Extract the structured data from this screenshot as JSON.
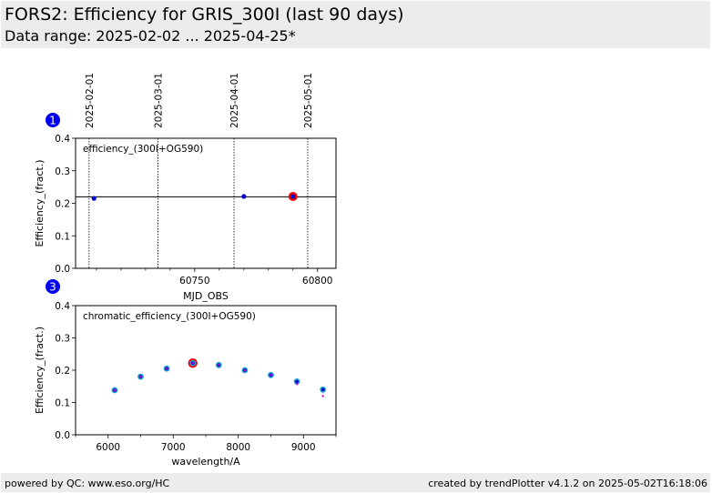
{
  "header": {
    "title": "FORS2: Efficiency for GRIS_300I (last 90 days)",
    "subtitle": "Data range: 2025-02-02 ... 2025-04-25*"
  },
  "footer": {
    "left": "powered by QC: www.eso.org/HC",
    "right": "created by trendPlotter v4.1.2 on 2025-05-02T16:18:06"
  },
  "colors": {
    "marker": "#0000cc",
    "highlight": "#ff0000",
    "cyan": "#1f9fcf",
    "magenta": "#cc00cc"
  },
  "chart_data": [
    {
      "type": "scatter",
      "panel_badge": "1",
      "annotation": "efficiency_(300I+OG590)",
      "xlabel": "MJD_OBS",
      "ylabel": "Efficiency_(fract.)",
      "xlim": [
        60701.5,
        60807.5
      ],
      "ylim": [
        0.0,
        0.4
      ],
      "x_ticks": [
        60750,
        60800
      ],
      "x_minor_ticks": [
        60710,
        60720,
        60730,
        60740,
        60760,
        60770,
        60780,
        60790
      ],
      "y_ticks": [
        0.0,
        0.1,
        0.2,
        0.3,
        0.4
      ],
      "date_markers": [
        {
          "label": "2025-02-01",
          "x": 60707
        },
        {
          "label": "2025-03-01",
          "x": 60735
        },
        {
          "label": "2025-04-01",
          "x": 60766
        },
        {
          "label": "2025-05-01",
          "x": 60796
        }
      ],
      "reference_line": 0.22,
      "points": [
        {
          "x": 60709,
          "y": 0.215
        },
        {
          "x": 60770,
          "y": 0.221
        },
        {
          "x": 60790,
          "y": 0.221,
          "highlight": true
        }
      ]
    },
    {
      "type": "scatter",
      "panel_badge": "3",
      "annotation": "chromatic_efficiency_(300I+OG590)",
      "xlabel": "wavelength/A",
      "ylabel": "Efficiency_(fract.)",
      "xlim": [
        5500,
        9500
      ],
      "ylim": [
        0.0,
        0.4
      ],
      "x_ticks": [
        6000,
        7000,
        8000,
        9000
      ],
      "x_minor_ticks": [
        5500,
        6500,
        7500,
        8500,
        9500
      ],
      "y_ticks": [
        0.0,
        0.1,
        0.2,
        0.3,
        0.4
      ],
      "series": [
        {
          "x": [
            6100,
            6500,
            6900,
            7300,
            7700,
            8100,
            8500,
            8900,
            9300
          ],
          "values": [
            0.138,
            0.18,
            0.205,
            0.222,
            0.216,
            0.2,
            0.185,
            0.165,
            0.14
          ]
        },
        {
          "x": [
            6100,
            6500,
            6900,
            7300,
            7700,
            8100,
            8500,
            8900,
            9300
          ],
          "values": [
            0.138,
            0.18,
            0.205,
            0.222,
            0.216,
            0.2,
            0.185,
            0.157,
            0.12
          ]
        }
      ],
      "highlight_x": 7300
    }
  ]
}
